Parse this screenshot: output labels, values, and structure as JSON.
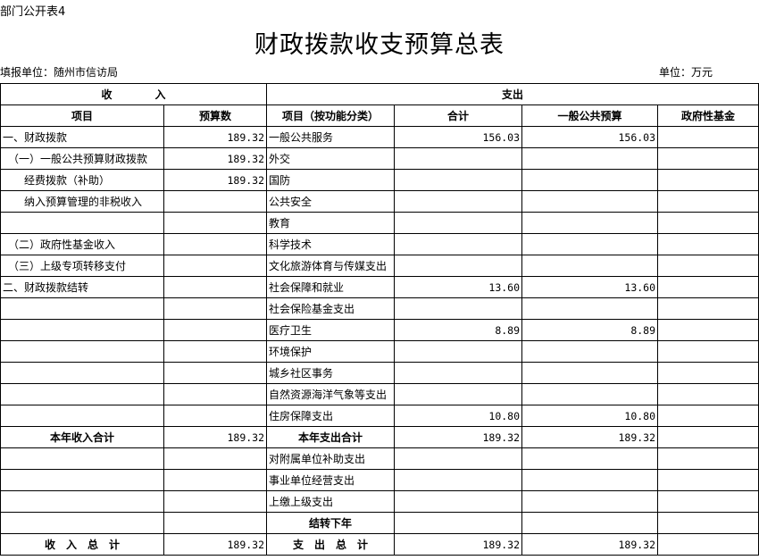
{
  "form_id": "部门公开表4",
  "title": "财政拨款收支预算总表",
  "unit_org": "填报单位：随州市信访局",
  "unit": "单位：万元",
  "headers": {
    "income": "收　　　　入",
    "expense": "支出",
    "item": "项目",
    "budget": "预算数",
    "func_item": "项目（按功能分类）",
    "total": "合计",
    "general": "一般公共预算",
    "fund": "政府性基金"
  },
  "rows": [
    {
      "in_item": "一、财政拨款",
      "in_val": "189.32",
      "out_item": "一般公共服务",
      "total": "156.03",
      "general": "156.03",
      "fund": ""
    },
    {
      "in_item": "（一）一般公共预算财政拨款",
      "in_val": "189.32",
      "out_item": "外交",
      "total": "",
      "general": "",
      "fund": ""
    },
    {
      "in_item": "经费拨款（补助）",
      "in_val": "189.32",
      "out_item": "国防",
      "total": "",
      "general": "",
      "fund": ""
    },
    {
      "in_item": "纳入预算管理的非税收入",
      "in_val": "",
      "out_item": "公共安全",
      "total": "",
      "general": "",
      "fund": ""
    },
    {
      "in_item": "",
      "in_val": "",
      "out_item": "教育",
      "total": "",
      "general": "",
      "fund": ""
    },
    {
      "in_item": "（二）政府性基金收入",
      "in_val": "",
      "out_item": "科学技术",
      "total": "",
      "general": "",
      "fund": ""
    },
    {
      "in_item": "（三）上级专项转移支付",
      "in_val": "",
      "out_item": "文化旅游体育与传媒支出",
      "total": "",
      "general": "",
      "fund": ""
    },
    {
      "in_item": "二、财政拨款结转",
      "in_val": "",
      "out_item": "社会保障和就业",
      "total": "13.60",
      "general": "13.60",
      "fund": ""
    },
    {
      "in_item": "",
      "in_val": "",
      "out_item": "社会保险基金支出",
      "total": "",
      "general": "",
      "fund": ""
    },
    {
      "in_item": "",
      "in_val": "",
      "out_item": "医疗卫生",
      "total": "8.89",
      "general": "8.89",
      "fund": ""
    },
    {
      "in_item": "",
      "in_val": "",
      "out_item": "环境保护",
      "total": "",
      "general": "",
      "fund": ""
    },
    {
      "in_item": "",
      "in_val": "",
      "out_item": "城乡社区事务",
      "total": "",
      "general": "",
      "fund": ""
    },
    {
      "in_item": "",
      "in_val": "",
      "out_item": "自然资源海洋气象等支出",
      "total": "",
      "general": "",
      "fund": ""
    },
    {
      "in_item": "",
      "in_val": "",
      "out_item": "住房保障支出",
      "total": "10.80",
      "general": "10.80",
      "fund": ""
    },
    {
      "in_item": "本年收入合计",
      "in_val": "189.32",
      "out_item": "本年支出合计",
      "total": "189.32",
      "general": "189.32",
      "fund": "",
      "bold": true
    },
    {
      "in_item": "",
      "in_val": "",
      "out_item": "对附属单位补助支出",
      "total": "",
      "general": "",
      "fund": ""
    },
    {
      "in_item": "",
      "in_val": "",
      "out_item": "事业单位经营支出",
      "total": "",
      "general": "",
      "fund": ""
    },
    {
      "in_item": "",
      "in_val": "",
      "out_item": "上缴上级支出",
      "total": "",
      "general": "",
      "fund": ""
    },
    {
      "in_item": "",
      "in_val": "",
      "out_item": "结转下年",
      "total": "",
      "general": "",
      "fund": "",
      "bold_out": true
    },
    {
      "in_item": "收　入　总　计",
      "in_val": "189.32",
      "out_item": "支　出　总　计",
      "total": "189.32",
      "general": "189.32",
      "fund": "",
      "bold": true
    }
  ]
}
